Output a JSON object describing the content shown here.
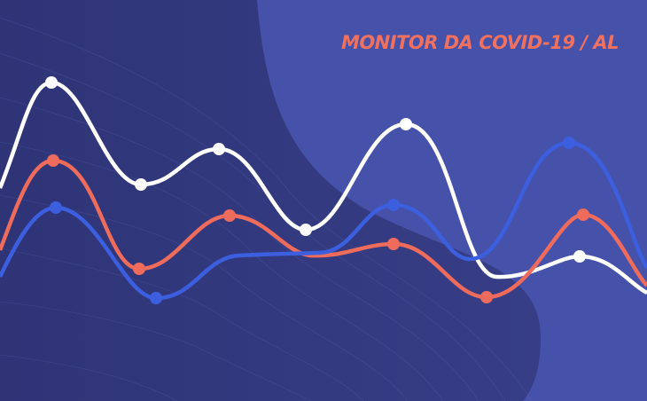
{
  "title": "MONITOR DA COVID-19 / AL",
  "colors": {
    "background": "#4651a9",
    "background_dark": "#2f3577",
    "title": "#f0715f",
    "line_white": "#ffffff",
    "line_orange": "#ef6c5c",
    "line_blue": "#3c5fe0"
  }
}
